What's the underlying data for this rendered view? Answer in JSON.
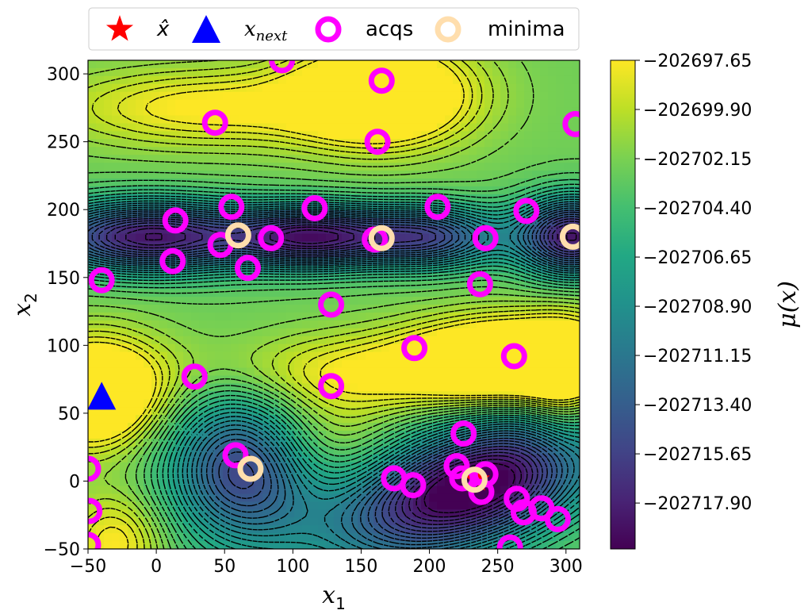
{
  "chart_data": {
    "type": "contour",
    "xlabel": "x",
    "xlabel_sub": "1",
    "ylabel": "x",
    "ylabel_sub": "2",
    "colorbar_label": "μ(x)",
    "xlim": [
      -50,
      310
    ],
    "ylim": [
      -50,
      310
    ],
    "x_ticks": [
      -50,
      0,
      50,
      100,
      150,
      200,
      250,
      300
    ],
    "x_tick_labels": [
      "−50",
      "0",
      "50",
      "100",
      "150",
      "200",
      "250",
      "300"
    ],
    "y_ticks": [
      -50,
      0,
      50,
      100,
      150,
      200,
      250,
      300
    ],
    "y_tick_labels": [
      "−50",
      "0",
      "50",
      "100",
      "150",
      "200",
      "250",
      "300"
    ],
    "colorbar_ticks": [
      -202697.65,
      -202699.9,
      -202702.15,
      -202704.4,
      -202706.65,
      -202708.9,
      -202711.15,
      -202713.4,
      -202715.65,
      -202717.9
    ],
    "colorbar_tick_labels": [
      "−202697.65",
      "−202699.90",
      "−202702.15",
      "−202704.40",
      "−202706.65",
      "−202708.90",
      "−202711.15",
      "−202713.40",
      "−202715.65",
      "−202717.90"
    ],
    "colorbar_range": [
      -202720.0,
      -202697.65
    ],
    "colormap": "viridis",
    "contour_style": "dashed black",
    "legend": {
      "placement": "top-center",
      "entries": [
        {
          "label": "x̂",
          "marker": "star",
          "color": "#ff0000"
        },
        {
          "label": "x",
          "label_sub": "next",
          "marker": "triangle",
          "color": "#0000ff"
        },
        {
          "label": "acqs",
          "marker": "ring",
          "color": "#ff00ff"
        },
        {
          "label": "minima",
          "marker": "ring",
          "color": "#ffdead"
        }
      ]
    },
    "series": [
      {
        "name": "x̂",
        "marker": "star",
        "color": "#ff0000",
        "points": [
          [
            235,
            1
          ]
        ]
      },
      {
        "name": "x_next",
        "marker": "triangle",
        "color": "#0000ff",
        "points": [
          [
            -40,
            62
          ]
        ]
      },
      {
        "name": "acqs",
        "marker": "ring",
        "color": "#ff00ff",
        "points": [
          [
            92,
            310
          ],
          [
            165,
            295
          ],
          [
            43,
            264
          ],
          [
            162,
            250
          ],
          [
            307,
            263
          ],
          [
            55,
            202
          ],
          [
            116,
            201
          ],
          [
            206,
            202
          ],
          [
            271,
            199
          ],
          [
            14,
            192
          ],
          [
            84,
            179
          ],
          [
            47,
            174
          ],
          [
            160,
            178
          ],
          [
            241,
            179
          ],
          [
            12,
            162
          ],
          [
            67,
            157
          ],
          [
            -40,
            148
          ],
          [
            237,
            145
          ],
          [
            128,
            130
          ],
          [
            189,
            98
          ],
          [
            262,
            92
          ],
          [
            28,
            77
          ],
          [
            128,
            70
          ],
          [
            225,
            35
          ],
          [
            58,
            19
          ],
          [
            -50,
            9
          ],
          [
            220,
            11
          ],
          [
            174,
            2
          ],
          [
            224,
            2
          ],
          [
            241,
            5
          ],
          [
            188,
            -3
          ],
          [
            238,
            -8
          ],
          [
            264,
            -13
          ],
          [
            269,
            -23
          ],
          [
            282,
            -20
          ],
          [
            294,
            -28
          ],
          [
            -49,
            -22
          ],
          [
            -50,
            -47
          ],
          [
            259,
            -49
          ]
        ]
      },
      {
        "name": "minima",
        "marker": "ring",
        "color": "#ffdead",
        "points": [
          [
            60,
            181
          ],
          [
            165,
            179
          ],
          [
            305,
            180
          ],
          [
            69,
            9
          ],
          [
            233,
            1
          ]
        ]
      }
    ]
  }
}
